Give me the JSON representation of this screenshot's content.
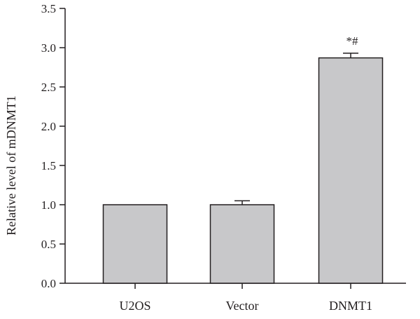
{
  "chart_data": {
    "type": "bar",
    "categories": [
      "U2OS",
      "Vector",
      "DNMT1"
    ],
    "values": [
      1.0,
      1.0,
      2.87
    ],
    "errors": [
      0.0,
      0.05,
      0.06
    ],
    "annotations": [
      "",
      "",
      "*#"
    ],
    "title": "",
    "xlabel": "",
    "ylabel": "Relative level of mDNMT1",
    "ylim": [
      0,
      3.5
    ],
    "yticks": [
      "0.0",
      "0.5",
      "1.0",
      "1.5",
      "2.0",
      "2.5",
      "3.0",
      "3.5"
    ],
    "bar_color": "#c8c8ca",
    "axis_color": "#231f20",
    "grid": false
  }
}
